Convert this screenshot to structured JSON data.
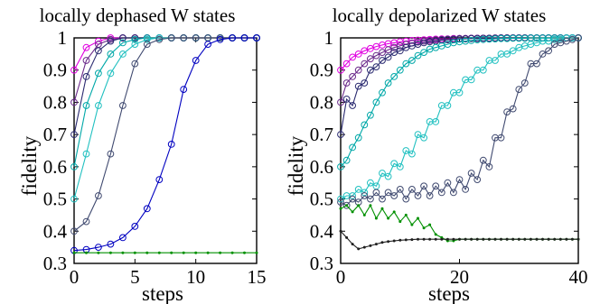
{
  "chart_data": [
    {
      "type": "line",
      "title": "locally dephased W states",
      "xlabel": "steps",
      "ylabel": "fidelity",
      "xlim": [
        0,
        15
      ],
      "ylim": [
        0.3,
        1.0
      ],
      "xticks": [
        0,
        5,
        10,
        15
      ],
      "xtick_labels": [
        "0",
        "5",
        "10",
        "15"
      ],
      "yticks": [
        0.3,
        0.4,
        0.5,
        0.6,
        0.7,
        0.8,
        0.9,
        1.0
      ],
      "ytick_labels": [
        "0.3",
        "0.4",
        "0.5",
        "0.6",
        "0.7",
        "0.8",
        "0.9",
        "1"
      ],
      "grid": false,
      "series": [
        {
          "color": "#e000e0",
          "marker": "circle",
          "x": [
            0,
            1,
            2,
            3,
            4,
            5,
            6,
            7,
            8,
            9,
            10,
            11,
            12,
            13,
            14,
            15
          ],
          "y": [
            0.9,
            0.97,
            0.99,
            1,
            1,
            1,
            1,
            1,
            1,
            1,
            1,
            1,
            1,
            1,
            1,
            1
          ]
        },
        {
          "color": "#6a2a8a",
          "marker": "circle",
          "x": [
            0,
            1,
            2,
            3,
            4,
            5,
            6,
            7,
            8,
            9,
            10,
            11,
            12,
            13,
            14,
            15
          ],
          "y": [
            0.8,
            0.93,
            0.98,
            0.995,
            1,
            1,
            1,
            1,
            1,
            1,
            1,
            1,
            1,
            1,
            1,
            1
          ]
        },
        {
          "color": "#2a2a70",
          "marker": "circle",
          "x": [
            0,
            1,
            2,
            3,
            4,
            5,
            6,
            7,
            8,
            9,
            10,
            11,
            12,
            13,
            14,
            15
          ],
          "y": [
            0.7,
            0.88,
            0.96,
            0.99,
            1,
            1,
            1,
            1,
            1,
            1,
            1,
            1,
            1,
            1,
            1,
            1
          ]
        },
        {
          "color": "#00a8a8",
          "marker": "circle",
          "x": [
            0,
            1,
            2,
            3,
            4,
            5,
            6,
            7,
            8,
            9,
            10,
            11,
            12,
            13,
            14,
            15
          ],
          "y": [
            0.6,
            0.79,
            0.89,
            0.95,
            0.985,
            0.995,
            1,
            1,
            1,
            1,
            1,
            1,
            1,
            1,
            1,
            1
          ]
        },
        {
          "color": "#20c0c0",
          "marker": "circle",
          "x": [
            0,
            1,
            2,
            3,
            4,
            5,
            6,
            7,
            8,
            9,
            10,
            11,
            12,
            13,
            14,
            15
          ],
          "y": [
            0.5,
            0.64,
            0.79,
            0.89,
            0.95,
            0.98,
            0.995,
            1,
            1,
            1,
            1,
            1,
            1,
            1,
            1,
            1
          ]
        },
        {
          "color": "#404a70",
          "marker": "circle",
          "x": [
            0,
            1,
            2,
            3,
            4,
            5,
            6,
            7,
            8,
            9,
            10,
            11,
            12,
            13,
            14,
            15
          ],
          "y": [
            0.4,
            0.43,
            0.51,
            0.64,
            0.79,
            0.92,
            0.98,
            0.995,
            1,
            1,
            1,
            1,
            1,
            1,
            1,
            1
          ]
        },
        {
          "color": "#0000c0",
          "marker": "circle",
          "x": [
            0,
            1,
            2,
            3,
            4,
            5,
            6,
            7,
            8,
            9,
            10,
            11,
            12,
            13,
            14,
            15
          ],
          "y": [
            0.34,
            0.343,
            0.35,
            0.36,
            0.38,
            0.415,
            0.47,
            0.56,
            0.67,
            0.84,
            0.93,
            0.98,
            0.995,
            1,
            1,
            1
          ]
        },
        {
          "color": "#009000",
          "marker": "dot",
          "x": [
            0,
            1,
            2,
            3,
            4,
            5,
            6,
            7,
            8,
            9,
            10,
            11,
            12,
            13,
            14,
            15
          ],
          "y": [
            0.333,
            0.333,
            0.333,
            0.333,
            0.333,
            0.333,
            0.333,
            0.333,
            0.333,
            0.333,
            0.333,
            0.333,
            0.333,
            0.333,
            0.333,
            0.333
          ]
        }
      ]
    },
    {
      "type": "line",
      "title": "locally depolarized W states",
      "xlabel": "steps",
      "ylabel": "fidelity",
      "xlim": [
        0,
        40
      ],
      "ylim": [
        0.3,
        1.0
      ],
      "xticks": [
        0,
        20,
        40
      ],
      "xtick_labels": [
        "0",
        "20",
        "40"
      ],
      "yticks": [
        0.3,
        0.4,
        0.5,
        0.6,
        0.7,
        0.8,
        0.9,
        1.0
      ],
      "ytick_labels": [
        "0.3",
        "0.4",
        "0.5",
        "0.6",
        "0.7",
        "0.8",
        "0.9",
        "1"
      ],
      "grid": false,
      "series": [
        {
          "color": "#e000e0",
          "marker": "circle",
          "x": [
            0,
            1,
            2,
            3,
            4,
            5,
            6,
            7,
            8,
            9,
            10,
            11,
            12,
            13,
            14,
            15,
            16,
            17,
            18,
            19,
            20,
            21,
            22,
            23,
            24,
            25,
            26,
            27,
            28,
            29,
            30,
            31,
            32,
            33,
            34,
            35,
            36,
            37,
            38,
            39,
            40
          ],
          "y": [
            0.9,
            0.92,
            0.94,
            0.95,
            0.96,
            0.967,
            0.973,
            0.978,
            0.982,
            0.985,
            0.988,
            0.99,
            0.992,
            0.993,
            0.994,
            0.995,
            0.996,
            0.997,
            0.997,
            0.998,
            0.998,
            0.998,
            0.999,
            0.999,
            0.999,
            0.999,
            0.999,
            1,
            1,
            1,
            1,
            1,
            1,
            1,
            1,
            1,
            1,
            1,
            1,
            1,
            1
          ]
        },
        {
          "color": "#6a2a8a",
          "marker": "circle",
          "x": [
            0,
            1,
            2,
            3,
            4,
            5,
            6,
            7,
            8,
            9,
            10,
            11,
            12,
            13,
            14,
            15,
            16,
            17,
            18,
            19,
            20,
            21,
            22,
            23,
            24,
            25,
            26,
            27,
            28,
            29,
            30,
            31,
            32,
            33,
            34,
            35,
            36,
            37,
            38,
            39,
            40
          ],
          "y": [
            0.8,
            0.86,
            0.88,
            0.9,
            0.92,
            0.935,
            0.945,
            0.955,
            0.963,
            0.97,
            0.975,
            0.98,
            0.984,
            0.987,
            0.99,
            0.992,
            0.994,
            0.995,
            0.996,
            0.997,
            0.998,
            0.998,
            0.999,
            0.999,
            0.999,
            0.999,
            1,
            1,
            1,
            1,
            1,
            1,
            1,
            1,
            1,
            1,
            1,
            1,
            1,
            1,
            1
          ]
        },
        {
          "color": "#2a2a70",
          "marker": "circle",
          "x": [
            0,
            1,
            2,
            3,
            4,
            5,
            6,
            7,
            8,
            9,
            10,
            11,
            12,
            13,
            14,
            15,
            16,
            17,
            18,
            19,
            20,
            21,
            22,
            23,
            24,
            25,
            26,
            27,
            28,
            29,
            30,
            31,
            32,
            33,
            34,
            35,
            36,
            37,
            38,
            39,
            40
          ],
          "y": [
            0.7,
            0.81,
            0.79,
            0.85,
            0.86,
            0.9,
            0.91,
            0.93,
            0.94,
            0.955,
            0.96,
            0.97,
            0.975,
            0.98,
            0.985,
            0.988,
            0.99,
            0.993,
            0.994,
            0.995,
            0.996,
            0.997,
            0.998,
            0.998,
            0.999,
            0.999,
            0.999,
            1,
            1,
            1,
            1,
            1,
            1,
            1,
            1,
            1,
            1,
            1,
            1,
            1,
            1
          ]
        },
        {
          "color": "#00a8a8",
          "marker": "circle",
          "x": [
            0,
            1,
            2,
            3,
            4,
            5,
            6,
            7,
            8,
            9,
            10,
            11,
            12,
            13,
            14,
            15,
            16,
            17,
            18,
            19,
            20,
            21,
            22,
            23,
            24,
            25,
            26,
            27,
            28,
            29,
            30,
            31,
            32,
            33,
            34,
            35,
            36,
            37,
            38,
            39,
            40
          ],
          "y": [
            0.6,
            0.62,
            0.66,
            0.69,
            0.73,
            0.76,
            0.8,
            0.83,
            0.86,
            0.88,
            0.9,
            0.92,
            0.93,
            0.945,
            0.955,
            0.965,
            0.97,
            0.975,
            0.98,
            0.985,
            0.988,
            0.99,
            0.992,
            0.994,
            0.995,
            0.996,
            0.997,
            0.998,
            0.998,
            0.999,
            0.999,
            0.999,
            1,
            1,
            1,
            1,
            1,
            1,
            1,
            1,
            1
          ]
        },
        {
          "color": "#20c0c0",
          "marker": "circle",
          "x": [
            0,
            1,
            2,
            3,
            4,
            5,
            6,
            7,
            8,
            9,
            10,
            11,
            12,
            13,
            14,
            15,
            16,
            17,
            18,
            19,
            20,
            21,
            22,
            23,
            24,
            25,
            26,
            27,
            28,
            29,
            30,
            31,
            32,
            33,
            34,
            35,
            36,
            37,
            38,
            39,
            40
          ],
          "y": [
            0.5,
            0.51,
            0.51,
            0.53,
            0.52,
            0.55,
            0.54,
            0.58,
            0.57,
            0.61,
            0.6,
            0.65,
            0.64,
            0.7,
            0.69,
            0.74,
            0.74,
            0.79,
            0.79,
            0.83,
            0.83,
            0.87,
            0.87,
            0.9,
            0.9,
            0.93,
            0.93,
            0.95,
            0.95,
            0.96,
            0.97,
            0.975,
            0.98,
            0.985,
            0.99,
            0.99,
            0.995,
            0.995,
            1,
            1,
            1
          ]
        },
        {
          "color": "#404a70",
          "marker": "circle",
          "x": [
            0,
            1,
            2,
            3,
            4,
            5,
            6,
            7,
            8,
            9,
            10,
            11,
            12,
            13,
            14,
            15,
            16,
            17,
            18,
            19,
            20,
            21,
            22,
            23,
            24,
            25,
            26,
            27,
            28,
            29,
            30,
            31,
            32,
            33,
            34,
            35,
            36,
            37,
            38,
            39,
            40
          ],
          "y": [
            0.49,
            0.48,
            0.5,
            0.49,
            0.51,
            0.5,
            0.52,
            0.5,
            0.52,
            0.51,
            0.53,
            0.5,
            0.53,
            0.51,
            0.54,
            0.51,
            0.54,
            0.52,
            0.55,
            0.52,
            0.56,
            0.53,
            0.58,
            0.56,
            0.62,
            0.6,
            0.69,
            0.69,
            0.77,
            0.78,
            0.84,
            0.86,
            0.92,
            0.92,
            0.95,
            0.96,
            0.98,
            0.985,
            0.99,
            0.995,
            1
          ]
        },
        {
          "color": "#009000",
          "marker": "dot",
          "x": [
            0,
            1,
            2,
            3,
            4,
            5,
            6,
            7,
            8,
            9,
            10,
            11,
            12,
            13,
            14,
            15,
            16,
            17,
            18,
            19,
            20,
            21,
            22,
            23,
            24,
            25,
            26,
            27,
            28,
            29,
            30,
            31,
            32,
            33,
            34,
            35,
            36,
            37,
            38,
            39,
            40
          ],
          "y": [
            0.47,
            0.48,
            0.46,
            0.48,
            0.45,
            0.48,
            0.44,
            0.47,
            0.44,
            0.46,
            0.43,
            0.45,
            0.42,
            0.44,
            0.41,
            0.42,
            0.39,
            0.38,
            0.37,
            0.37,
            0.375,
            0.375,
            0.375,
            0.375,
            0.375,
            0.375,
            0.375,
            0.375,
            0.375,
            0.375,
            0.375,
            0.375,
            0.375,
            0.375,
            0.375,
            0.375,
            0.375,
            0.375,
            0.375,
            0.375,
            0.375
          ]
        },
        {
          "color": "#202020",
          "marker": "dot",
          "x": [
            0,
            1,
            2,
            3,
            4,
            5,
            6,
            7,
            8,
            9,
            10,
            11,
            12,
            13,
            14,
            15,
            16,
            17,
            18,
            19,
            20,
            21,
            22,
            23,
            24,
            25,
            26,
            27,
            28,
            29,
            30,
            31,
            32,
            33,
            34,
            35,
            36,
            37,
            38,
            39,
            40
          ],
          "y": [
            0.4,
            0.38,
            0.36,
            0.345,
            0.35,
            0.355,
            0.36,
            0.365,
            0.368,
            0.37,
            0.372,
            0.373,
            0.374,
            0.375,
            0.375,
            0.375,
            0.375,
            0.375,
            0.375,
            0.375,
            0.375,
            0.375,
            0.375,
            0.375,
            0.375,
            0.375,
            0.375,
            0.375,
            0.375,
            0.375,
            0.375,
            0.375,
            0.375,
            0.375,
            0.375,
            0.375,
            0.375,
            0.375,
            0.375,
            0.375,
            0.375
          ]
        }
      ]
    }
  ]
}
